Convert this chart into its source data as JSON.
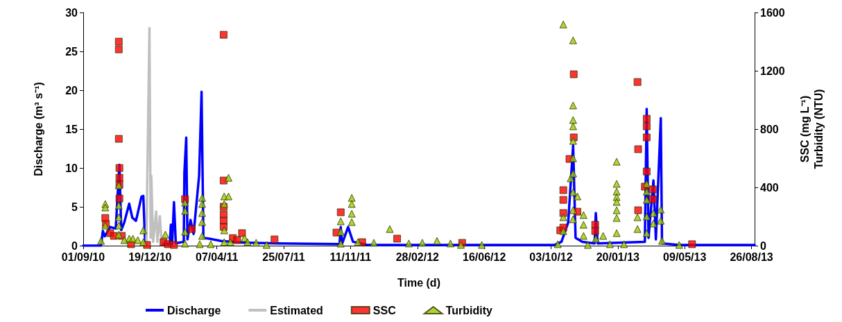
{
  "chart_data": {
    "type": "line",
    "xlabel": "Time (d)",
    "ylabel": "Discharge (m³ s⁻¹)",
    "y2label": "SSC (mg L⁻¹)\nTurbidity (NTU)",
    "xlim": [
      "2010-09-01",
      "2013-08-31"
    ],
    "xticks": [
      {
        "value": "2010-09-01",
        "label": "01/09/10"
      },
      {
        "value": "2010-12-19",
        "label": "19/12/10"
      },
      {
        "value": "2011-04-07",
        "label": "07/04/11"
      },
      {
        "value": "2011-07-25",
        "label": "25/07/11"
      },
      {
        "value": "2011-11-11",
        "label": "11/11/11"
      },
      {
        "value": "2012-02-28",
        "label": "28/02/12"
      },
      {
        "value": "2012-06-16",
        "label": "16/06/12"
      },
      {
        "value": "2012-10-03",
        "label": "03/10/12"
      },
      {
        "value": "2013-01-20",
        "label": "20/01/13"
      },
      {
        "value": "2013-05-09",
        "label": "09/05/13"
      },
      {
        "value": "2013-08-26",
        "label": "26/08/13"
      }
    ],
    "ylim": [
      0,
      30
    ],
    "yticks": [
      0,
      5,
      10,
      15,
      20,
      25,
      30
    ],
    "y2lim": [
      0,
      1600
    ],
    "y2ticks": [
      0,
      400,
      800,
      1200,
      1600
    ],
    "grid": false,
    "legend": "bottom",
    "series": [
      {
        "name": "Discharge",
        "color": "#0000ff",
        "marker": "none",
        "line_style": "solid",
        "x": [
          "2010-09-01",
          "2010-09-30",
          "2010-10-03",
          "2010-10-06",
          "2010-10-15",
          "2010-10-24",
          "2010-10-30",
          "2010-11-02",
          "2010-11-07",
          "2010-11-15",
          "2010-11-20",
          "2010-11-26",
          "2010-11-29",
          "2010-12-05",
          "2010-12-08",
          "2010-12-11",
          "2010-12-20",
          "2011-01-07",
          "2011-01-20",
          "2011-01-22",
          "2011-01-24",
          "2011-01-27",
          "2011-01-30",
          "2011-02-12",
          "2011-02-13",
          "2011-02-16",
          "2011-02-18",
          "2011-02-23",
          "2011-02-28",
          "2011-03-09",
          "2011-03-13",
          "2011-03-16",
          "2011-03-26",
          "2011-04-14",
          "2011-05-18",
          "2011-07-14",
          "2011-10-24",
          "2011-10-26",
          "2011-10-28",
          "2011-11-07",
          "2011-11-15",
          "2011-12-08",
          "2012-10-09",
          "2012-10-20",
          "2012-10-31",
          "2012-11-08",
          "2012-11-12",
          "2012-11-23",
          "2012-12-13",
          "2012-12-15",
          "2012-12-18",
          "2013-03-05",
          "2013-03-08",
          "2013-03-11",
          "2013-03-19",
          "2013-03-23",
          "2013-03-31",
          "2013-04-02",
          "2013-04-30",
          "2013-08-31"
        ],
        "values": [
          0,
          0,
          1.9,
          1.2,
          2.4,
          2.2,
          10.4,
          2.0,
          3.0,
          5.4,
          3.6,
          3.2,
          4.2,
          6.3,
          6.4,
          0.3,
          null,
          0.2,
          0.2,
          2.7,
          0.2,
          5.6,
          0.3,
          0.5,
          9.4,
          13.9,
          0.8,
          3.3,
          1.5,
          9.0,
          19.8,
          1.0,
          0.9,
          0.6,
          0.4,
          0.3,
          0.2,
          2.4,
          0.2,
          2.4,
          0.5,
          0.1,
          0.1,
          0.5,
          3,
          12.9,
          1.0,
          0.5,
          0.3,
          4.2,
          0.3,
          0.5,
          17.6,
          1.0,
          8.4,
          0.8,
          16.4,
          0.3,
          0.1,
          0.1
        ]
      },
      {
        "name": "Estimated",
        "color": "#c0c0c0",
        "marker": "none",
        "line_style": "solid",
        "x": [
          "2010-12-11",
          "2010-12-13",
          "2010-12-18",
          "2010-12-20",
          "2010-12-21",
          "2010-12-24",
          "2010-12-29",
          "2010-12-31",
          "2011-01-04",
          "2011-01-07"
        ],
        "values": [
          0.3,
          0.3,
          28.0,
          1.0,
          9.0,
          0.5,
          4.4,
          0.5,
          3.8,
          0.2
        ]
      },
      {
        "name": "SSC",
        "type": "scatter",
        "axis": "y2",
        "color": "#ff0000",
        "marker": "square",
        "x": [
          "2010-10-07",
          "2010-10-08",
          "2010-10-15",
          "2010-10-21",
          "2010-10-29",
          "2010-10-29",
          "2010-10-29",
          "2010-10-30",
          "2010-10-30",
          "2010-10-30",
          "2010-10-30",
          "2010-11-03",
          "2010-11-18",
          "2010-12-14",
          "2011-01-10",
          "2011-01-17",
          "2011-01-27",
          "2011-02-14",
          "2011-02-25",
          "2011-04-18",
          "2011-04-18",
          "2011-04-18",
          "2011-04-18",
          "2011-04-18",
          "2011-04-18",
          "2011-05-03",
          "2011-05-10",
          "2011-05-18",
          "2011-07-10",
          "2011-10-19",
          "2011-10-26",
          "2011-11-30",
          "2012-01-26",
          "2012-05-11",
          "2012-10-18",
          "2012-10-23",
          "2012-10-23",
          "2012-10-23",
          "2012-10-23",
          "2012-11-02",
          "2012-11-09",
          "2012-11-09",
          "2012-11-15",
          "2012-12-14",
          "2012-12-14",
          "2013-02-21",
          "2013-02-22",
          "2013-02-22",
          "2013-03-05",
          "2013-03-08",
          "2013-03-08",
          "2013-03-08",
          "2013-03-08",
          "2013-03-18",
          "2013-03-18",
          "2013-05-21"
        ],
        "values": [
          190,
          148,
          86,
          67,
          1400,
          1347,
          733,
          533,
          466,
          419,
          324,
          67,
          10,
          5,
          24,
          10,
          5,
          319,
          114,
          1447,
          447,
          267,
          214,
          171,
          129,
          52,
          38,
          86,
          43,
          90,
          229,
          24,
          48,
          19,
          105,
          381,
          314,
          224,
          124,
          595,
          1176,
          743,
          233,
          143,
          100,
          1123,
          662,
          243,
          405,
          871,
          819,
          743,
          509,
          386,
          319,
          10
        ]
      },
      {
        "name": "Turbidity",
        "type": "scatter",
        "axis": "y2",
        "color": "#99cc00",
        "marker": "triangle",
        "x": [
          "2010-09-30",
          "2010-10-07",
          "2010-10-07",
          "2010-10-07",
          "2010-10-29",
          "2010-10-29",
          "2010-10-29",
          "2010-10-29",
          "2010-10-29",
          "2010-11-07",
          "2010-11-15",
          "2010-11-21",
          "2010-11-29",
          "2010-12-08",
          "2010-12-08",
          "2011-01-13",
          "2011-02-14",
          "2011-02-14",
          "2011-02-14",
          "2011-02-14",
          "2011-03-10",
          "2011-03-14",
          "2011-03-14",
          "2011-03-14",
          "2011-03-14",
          "2011-03-14",
          "2011-03-28",
          "2011-04-19",
          "2011-04-19",
          "2011-04-19",
          "2011-04-19",
          "2011-04-26",
          "2011-04-26",
          "2011-04-29",
          "2011-05-22",
          "2011-05-27",
          "2011-06-10",
          "2011-06-27",
          "2011-10-26",
          "2011-10-26",
          "2011-10-26",
          "2011-11-13",
          "2011-11-13",
          "2011-11-13",
          "2011-11-13",
          "2011-11-23",
          "2011-12-19",
          "2012-01-14",
          "2012-02-14",
          "2012-03-07",
          "2012-03-31",
          "2012-04-22",
          "2012-05-09",
          "2012-06-12",
          "2012-10-14",
          "2012-10-23",
          "2012-10-23",
          "2012-10-23",
          "2012-11-04",
          "2012-11-08",
          "2012-11-08",
          "2012-11-08",
          "2012-11-08",
          "2012-11-08",
          "2012-11-08",
          "2012-11-08",
          "2012-11-08",
          "2012-11-08",
          "2012-11-08",
          "2012-11-15",
          "2012-11-25",
          "2012-11-25",
          "2012-11-25",
          "2012-12-02",
          "2012-12-15",
          "2012-12-27",
          "2013-01-07",
          "2013-01-18",
          "2013-01-18",
          "2013-01-18",
          "2013-01-18",
          "2013-01-18",
          "2013-01-18",
          "2013-01-18",
          "2013-01-18",
          "2013-01-30",
          "2013-02-21",
          "2013-02-21",
          "2013-03-08",
          "2013-03-08",
          "2013-03-08",
          "2013-03-08",
          "2013-03-08",
          "2013-03-19",
          "2013-03-19",
          "2013-03-31",
          "2013-03-31",
          "2013-04-02",
          "2013-04-30"
        ],
        "values": [
          33,
          286,
          262,
          138,
          414,
          276,
          195,
          138,
          76,
          38,
          48,
          48,
          38,
          105,
          24,
          76,
          295,
          238,
          95,
          14,
          10,
          328,
          286,
          224,
          162,
          67,
          10,
          338,
          286,
          105,
          24,
          466,
          338,
          24,
          52,
          24,
          20,
          5,
          167,
          95,
          14,
          328,
          286,
          219,
          162,
          24,
          20,
          114,
          15,
          20,
          33,
          15,
          5,
          5,
          10,
          1518,
          195,
          100,
          462,
          1409,
          962,
          862,
          819,
          719,
          600,
          495,
          367,
          243,
          181,
          338,
          210,
          143,
          67,
          5,
          48,
          67,
          10,
          576,
          424,
          371,
          333,
          300,
          243,
          190,
          86,
          10,
          195,
          114,
          424,
          371,
          314,
          200,
          86,
          224,
          152,
          248,
          171,
          33,
          5
        ]
      }
    ]
  }
}
